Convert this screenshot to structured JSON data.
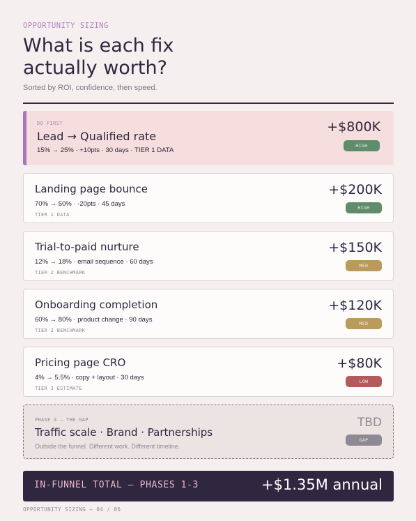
{
  "header": {
    "eyebrow": "OPPORTUNITY SIZING",
    "title": "What is each fix actually worth?",
    "subtitle": "Sorted by ROI, confidence, then speed."
  },
  "cards": [
    {
      "eyebrow": "DO FIRST",
      "name": "Lead → Qualified rate",
      "meta": "15% → 25% · +10pts · 30 days · TIER 1 DATA",
      "tier": "",
      "value": "+$800K",
      "badge": "HIGH",
      "badge_color": "#5f8d6c"
    },
    {
      "name": "Landing page bounce",
      "meta": "70% → 50% · -20pts · 45 days",
      "tier": "TIER 1 DATA",
      "value": "+$200K",
      "badge": "HIGH",
      "badge_color": "#5f8d6c"
    },
    {
      "name": "Trial-to-paid nurture",
      "meta": "12% → 18% · email sequence · 60 days",
      "tier": "TIER 2 BENCHMARK",
      "value": "+$150K",
      "badge": "MED",
      "badge_color": "#bb9a5e"
    },
    {
      "name": "Onboarding completion",
      "meta": "60% → 80% · product change · 90 days",
      "tier": "TIER 2 BENCHMARK",
      "value": "+$120K",
      "badge": "MED",
      "badge_color": "#bb9a5e"
    },
    {
      "name": "Pricing page CRO",
      "meta": "4% → 5.5% · copy + layout · 30 days",
      "tier": "TIER 3 ESTIMATE",
      "value": "+$80K",
      "badge": "LOW",
      "badge_color": "#b35a5d"
    },
    {
      "tier": "PHASE 4 — THE GAP",
      "name": "Traffic scale · Brand · Partnerships",
      "meta": "Outside the funnel. Different work. Different timeline.",
      "value": "TBD",
      "badge": "GAP",
      "badge_color": "#8e8993"
    }
  ],
  "total": {
    "label": "IN-FUNNEL TOTAL — PHASES 1-3",
    "amount": "+$1.35M annual"
  },
  "footer": "OPPORTUNITY SIZING — 04 / 06"
}
